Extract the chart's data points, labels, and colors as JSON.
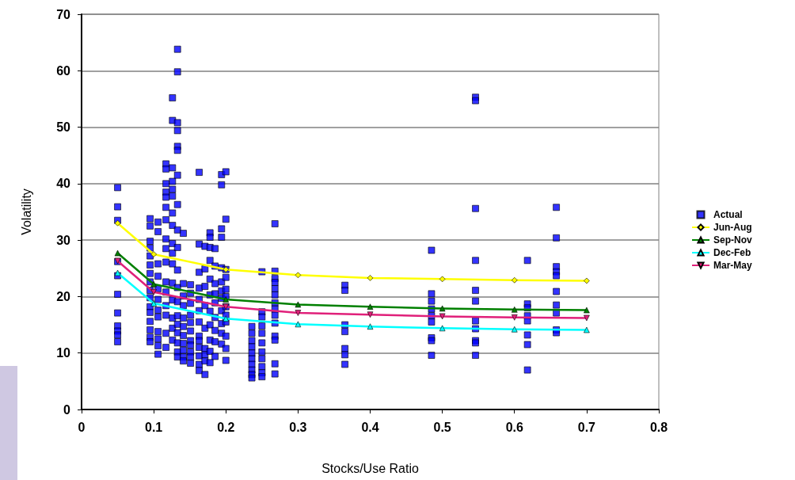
{
  "chart_data": {
    "type": "scatter",
    "xlabel": "Stocks/Use Ratio",
    "ylabel": "Volatility",
    "xlim": [
      0,
      0.8
    ],
    "xticks": [
      0,
      0.1,
      0.2,
      0.3,
      0.4,
      0.5,
      0.6,
      0.7,
      0.8
    ],
    "ylim": [
      0,
      70
    ],
    "yticks": [
      0,
      10,
      20,
      30,
      40,
      50,
      60,
      70
    ],
    "grid": "y",
    "legend": "right",
    "series": [
      {
        "name": "Actual",
        "marker": "square",
        "color": "#0000ff",
        "x": [
          0.05,
          0.05,
          0.05,
          0.05,
          0.05,
          0.05,
          0.05,
          0.05,
          0.05,
          0.05,
          0.05,
          0.095,
          0.095,
          0.095,
          0.095,
          0.095,
          0.095,
          0.095,
          0.095,
          0.095,
          0.095,
          0.095,
          0.095,
          0.095,
          0.095,
          0.095,
          0.095,
          0.106,
          0.106,
          0.106,
          0.106,
          0.106,
          0.106,
          0.106,
          0.106,
          0.106,
          0.106,
          0.106,
          0.106,
          0.117,
          0.117,
          0.117,
          0.117,
          0.117,
          0.117,
          0.117,
          0.117,
          0.117,
          0.117,
          0.117,
          0.117,
          0.117,
          0.117,
          0.117,
          0.117,
          0.126,
          0.126,
          0.126,
          0.126,
          0.126,
          0.126,
          0.126,
          0.126,
          0.126,
          0.126,
          0.126,
          0.126,
          0.126,
          0.126,
          0.126,
          0.126,
          0.133,
          0.133,
          0.133,
          0.133,
          0.133,
          0.133,
          0.133,
          0.133,
          0.133,
          0.133,
          0.133,
          0.133,
          0.133,
          0.133,
          0.133,
          0.133,
          0.133,
          0.133,
          0.133,
          0.141,
          0.141,
          0.141,
          0.141,
          0.141,
          0.141,
          0.141,
          0.141,
          0.141,
          0.141,
          0.141,
          0.151,
          0.151,
          0.151,
          0.151,
          0.151,
          0.151,
          0.151,
          0.151,
          0.151,
          0.151,
          0.151,
          0.163,
          0.163,
          0.163,
          0.163,
          0.163,
          0.163,
          0.163,
          0.163,
          0.163,
          0.163,
          0.163,
          0.163,
          0.163,
          0.171,
          0.171,
          0.171,
          0.171,
          0.171,
          0.171,
          0.171,
          0.171,
          0.171,
          0.178,
          0.178,
          0.178,
          0.178,
          0.178,
          0.178,
          0.178,
          0.178,
          0.178,
          0.178,
          0.178,
          0.185,
          0.185,
          0.185,
          0.185,
          0.185,
          0.185,
          0.185,
          0.185,
          0.185,
          0.194,
          0.194,
          0.194,
          0.194,
          0.194,
          0.194,
          0.194,
          0.194,
          0.194,
          0.194,
          0.194,
          0.194,
          0.2,
          0.2,
          0.2,
          0.2,
          0.2,
          0.2,
          0.2,
          0.2,
          0.2,
          0.2,
          0.2,
          0.2,
          0.236,
          0.236,
          0.236,
          0.236,
          0.236,
          0.236,
          0.236,
          0.236,
          0.236,
          0.236,
          0.25,
          0.25,
          0.25,
          0.25,
          0.25,
          0.25,
          0.25,
          0.25,
          0.25,
          0.25,
          0.25,
          0.268,
          0.268,
          0.268,
          0.268,
          0.268,
          0.268,
          0.268,
          0.268,
          0.268,
          0.268,
          0.268,
          0.268,
          0.268,
          0.268,
          0.365,
          0.365,
          0.365,
          0.365,
          0.365,
          0.365,
          0.365,
          0.485,
          0.485,
          0.485,
          0.485,
          0.485,
          0.485,
          0.485,
          0.485,
          0.485,
          0.546,
          0.546,
          0.546,
          0.546,
          0.546,
          0.546,
          0.546,
          0.546,
          0.546,
          0.546,
          0.546,
          0.618,
          0.618,
          0.618,
          0.618,
          0.618,
          0.618,
          0.618,
          0.618,
          0.658,
          0.658,
          0.658,
          0.658,
          0.658,
          0.658,
          0.658,
          0.658,
          0.658,
          0.658
        ],
        "values": [
          39.3,
          35.9,
          33.5,
          26.2,
          23.7,
          20.4,
          17.1,
          14.8,
          13.9,
          13.2,
          12.0,
          33.8,
          32.5,
          29.8,
          28.6,
          27.2,
          25.6,
          24.1,
          22.6,
          21.1,
          19.8,
          18.2,
          17.2,
          15.6,
          14.1,
          12.8,
          12.0,
          33.2,
          31.5,
          25.8,
          23.6,
          21.4,
          19.5,
          17.6,
          16.4,
          13.8,
          12.5,
          11.3,
          9.8,
          43.5,
          42.6,
          40.0,
          38.5,
          37.6,
          35.8,
          33.6,
          30.2,
          28.5,
          26.1,
          22.6,
          20.8,
          18.4,
          16.7,
          13.5,
          11.0,
          55.2,
          51.2,
          42.8,
          40.4,
          39.0,
          37.8,
          34.8,
          32.6,
          29.4,
          27.7,
          25.8,
          22.4,
          19.4,
          16.2,
          14.4,
          12.3,
          63.8,
          59.8,
          50.8,
          49.4,
          46.6,
          45.9,
          41.5,
          36.3,
          31.8,
          28.7,
          24.7,
          21.6,
          19.1,
          16.6,
          15.1,
          13.6,
          11.8,
          10.2,
          9.3,
          31.2,
          22.3,
          20.1,
          18.4,
          16.2,
          14.7,
          13.1,
          11.7,
          10.5,
          9.3,
          8.6,
          22.1,
          20.6,
          18.8,
          16.7,
          15.4,
          13.9,
          12.2,
          11.4,
          10.2,
          9.3,
          8.2,
          42.0,
          29.3,
          24.3,
          21.5,
          19.5,
          17.5,
          15.5,
          13.0,
          12.2,
          11.0,
          9.5,
          8.0,
          6.9,
          28.9,
          24.9,
          21.8,
          18.4,
          14.4,
          10.8,
          9.7,
          8.6,
          6.2,
          31.3,
          30.5,
          28.7,
          26.4,
          23.1,
          20.3,
          17.4,
          15.0,
          12.3,
          10.3,
          8.3,
          28.5,
          25.4,
          22.3,
          20.5,
          18.9,
          16.3,
          14.0,
          12.0,
          9.4,
          41.6,
          39.8,
          32.0,
          30.5,
          25.1,
          22.6,
          21.0,
          19.7,
          17.5,
          15.2,
          13.5,
          11.6,
          42.1,
          33.7,
          24.8,
          23.4,
          21.3,
          20.0,
          18.2,
          16.7,
          15.5,
          13.0,
          10.8,
          8.7,
          14.7,
          13.5,
          12.2,
          11.1,
          10.0,
          9.0,
          8.0,
          7.0,
          6.2,
          5.6,
          24.4,
          17.3,
          16.4,
          14.8,
          13.5,
          11.8,
          10.2,
          9.0,
          7.6,
          6.5,
          5.8,
          32.9,
          24.5,
          23.2,
          22.5,
          21.4,
          20.3,
          18.9,
          17.8,
          16.7,
          15.3,
          13.0,
          12.3,
          8.1,
          6.3,
          22.0,
          21.1,
          15.0,
          13.8,
          10.8,
          9.7,
          8.0,
          28.2,
          20.5,
          19.2,
          17.8,
          16.6,
          15.5,
          12.7,
          12.2,
          9.6,
          55.3,
          54.7,
          35.6,
          26.4,
          21.1,
          19.2,
          15.7,
          14.3,
          12.2,
          11.8,
          9.6,
          26.4,
          18.7,
          18.0,
          16.6,
          15.7,
          13.2,
          11.5,
          7.0,
          35.8,
          30.4,
          25.3,
          24.4,
          23.7,
          20.9,
          18.5,
          17.1,
          14.1,
          13.6
        ]
      },
      {
        "name": "Jun-Aug",
        "type": "line",
        "marker": "diamond",
        "color": "#ffff00",
        "x": [
          0.05,
          0.1,
          0.2,
          0.3,
          0.4,
          0.5,
          0.6,
          0.7
        ],
        "values": [
          33.0,
          27.5,
          24.8,
          23.8,
          23.3,
          23.1,
          22.9,
          22.8
        ]
      },
      {
        "name": "Sep-Nov",
        "type": "line",
        "marker": "triangle",
        "color": "#008000",
        "x": [
          0.05,
          0.1,
          0.2,
          0.3,
          0.4,
          0.5,
          0.6,
          0.7
        ],
        "values": [
          27.7,
          22.2,
          19.5,
          18.6,
          18.2,
          17.9,
          17.7,
          17.6
        ]
      },
      {
        "name": "Dec-Feb",
        "type": "line",
        "marker": "triangle",
        "color": "#00ffff",
        "x": [
          0.05,
          0.1,
          0.2,
          0.3,
          0.4,
          0.5,
          0.6,
          0.7
        ],
        "values": [
          24.2,
          18.8,
          16.1,
          15.1,
          14.7,
          14.4,
          14.2,
          14.1
        ]
      },
      {
        "name": "Mar-May",
        "type": "line",
        "marker": "triangle-down",
        "color": "#e0207a",
        "x": [
          0.05,
          0.1,
          0.2,
          0.3,
          0.4,
          0.5,
          0.6,
          0.7
        ],
        "values": [
          26.3,
          20.8,
          18.2,
          17.1,
          16.8,
          16.5,
          16.3,
          16.2
        ]
      }
    ]
  }
}
